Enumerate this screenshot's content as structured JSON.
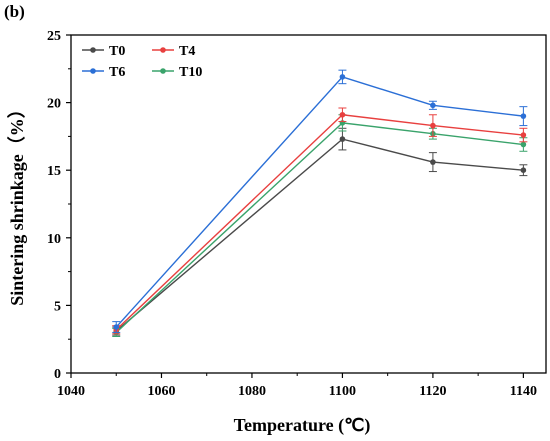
{
  "panel_label": "(b)",
  "chart_data": {
    "type": "line",
    "xlabel": "Temperature (℃)",
    "ylabel": "Sintering shrinkage（%）",
    "xlim": [
      1040,
      1145
    ],
    "ylim": [
      0,
      25
    ],
    "xticks": [
      1040,
      1060,
      1080,
      1100,
      1120,
      1140
    ],
    "yticks": [
      0,
      5,
      10,
      15,
      20,
      25
    ],
    "x": [
      1050,
      1100,
      1120,
      1140
    ],
    "legend_position": "top-left",
    "grid": false,
    "series": [
      {
        "name": "T0",
        "color": "#4a4a4a",
        "values": [
          3.1,
          17.3,
          15.6,
          15.0
        ],
        "errors": [
          0.3,
          0.8,
          0.7,
          0.4
        ]
      },
      {
        "name": "T4",
        "color": "#e8403f",
        "values": [
          3.2,
          19.1,
          18.3,
          17.6
        ],
        "errors": [
          0.3,
          0.5,
          0.8,
          0.5
        ]
      },
      {
        "name": "T6",
        "color": "#2b6fd6",
        "values": [
          3.4,
          21.9,
          19.8,
          19.0
        ],
        "errors": [
          0.4,
          0.5,
          0.3,
          0.7
        ]
      },
      {
        "name": "T10",
        "color": "#3aa36b",
        "values": [
          3.0,
          18.5,
          17.7,
          16.9
        ],
        "errors": [
          0.3,
          0.6,
          0.4,
          0.5
        ]
      }
    ]
  }
}
